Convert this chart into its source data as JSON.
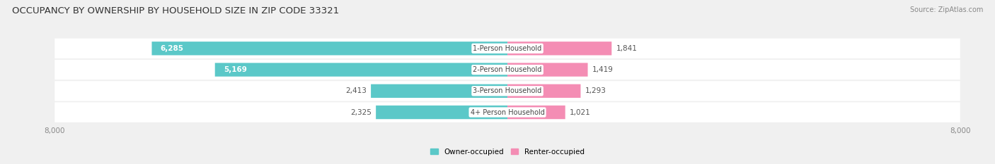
{
  "title": "OCCUPANCY BY OWNERSHIP BY HOUSEHOLD SIZE IN ZIP CODE 33321",
  "source": "Source: ZipAtlas.com",
  "categories": [
    "1-Person Household",
    "2-Person Household",
    "3-Person Household",
    "4+ Person Household"
  ],
  "owner_values": [
    6285,
    5169,
    2413,
    2325
  ],
  "renter_values": [
    1841,
    1419,
    1293,
    1021
  ],
  "owner_color": "#5BC8C8",
  "renter_color": "#F48DB4",
  "axis_max": 8000,
  "background_color": "#f0f0f0",
  "bar_bg_color": "#ffffff",
  "title_fontsize": 9.5,
  "source_fontsize": 7,
  "legend_owner": "Owner-occupied",
  "legend_renter": "Renter-occupied",
  "owner_label_threshold": 3000
}
